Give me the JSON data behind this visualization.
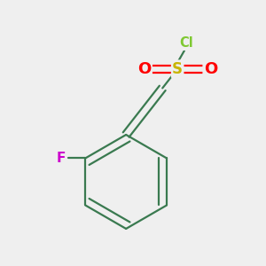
{
  "background_color": "#efefef",
  "figsize": [
    3.0,
    3.0
  ],
  "dpi": 100,
  "atom_colors": {
    "Cl": "#7fc832",
    "S": "#c8b400",
    "O": "#ff0000",
    "F": "#cc00cc",
    "bond": "#3a7a50"
  },
  "font_sizes": {
    "Cl": 10.5,
    "S": 12,
    "O": 13,
    "F": 11
  },
  "lw": 1.6
}
